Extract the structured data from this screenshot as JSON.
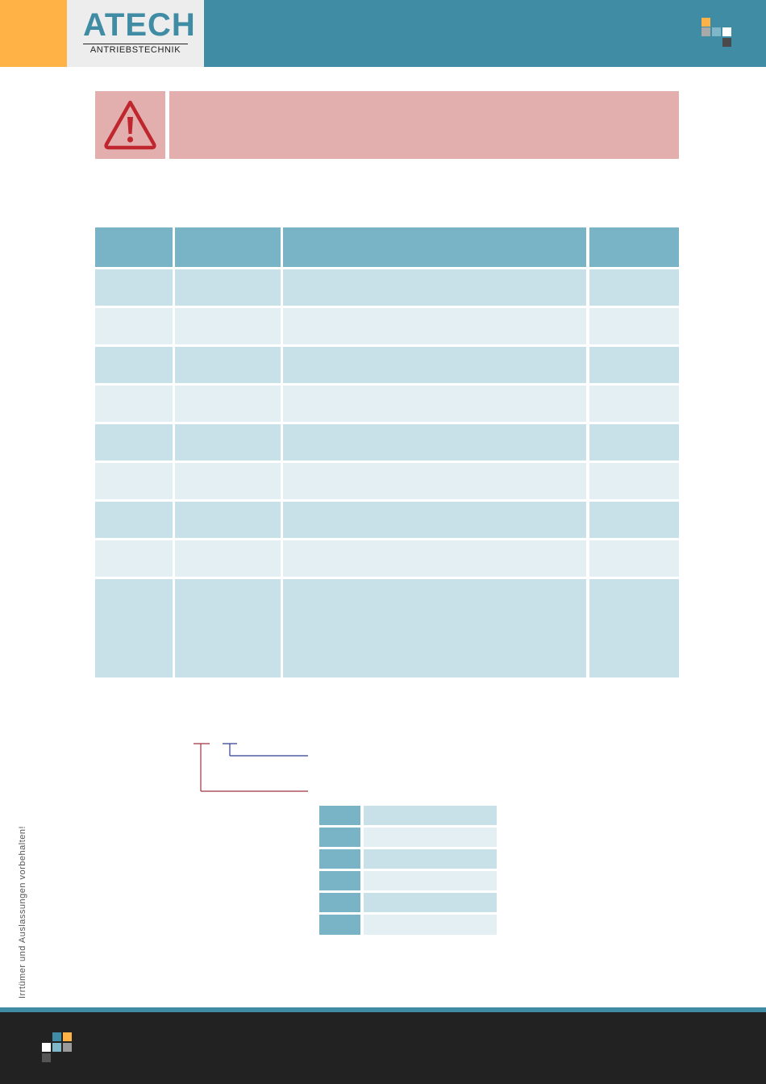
{
  "header": {
    "logo_main": "ATECH",
    "logo_sub": "ANTRIEBSTECHNIK"
  },
  "colors": {
    "accent_orange": "#FFB347",
    "brand_teal": "#3F8CA4",
    "warning_bg": "#E2AFAE",
    "warning_icon": "#C0262D",
    "table_header": "#78B3C6",
    "row_dark": "#C8E0E7",
    "row_light": "#E4EFF3",
    "footer": "#222222"
  },
  "icons": {
    "header": "brand-squares-icon",
    "warning": "warning-triangle-icon",
    "footer": "brand-squares-icon"
  },
  "side_text": "Irrtümer und Auslassungen vorbehalten!"
}
